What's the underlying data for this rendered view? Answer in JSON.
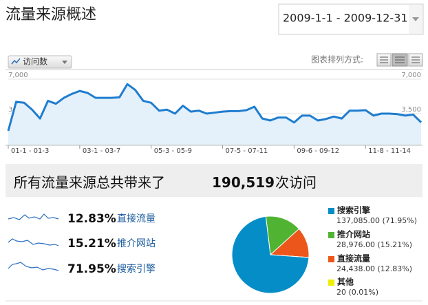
{
  "header": {
    "title": "流量来源概述",
    "date_range": "2009-1-1 - 2009-12-31"
  },
  "chart_data": [
    {
      "type": "line",
      "layout_label": "图表排列方式:",
      "categories": [
        "01-1 - 01-3",
        null,
        null,
        null,
        null,
        null,
        null,
        null,
        null,
        "03-1 - 03-7",
        null,
        null,
        null,
        null,
        null,
        null,
        null,
        null,
        "05-3 - 05-9",
        null,
        null,
        null,
        null,
        null,
        null,
        null,
        null,
        "07-5 - 07-11",
        null,
        null,
        null,
        null,
        null,
        null,
        null,
        null,
        "09-6 - 09-12",
        null,
        null,
        null,
        null,
        null,
        null,
        null,
        null,
        "11-8 - 11-14",
        null,
        null,
        null,
        null,
        null,
        null,
        null
      ],
      "series": [
        {
          "name": "访问数",
          "color": "#1f7dcf",
          "values": [
            1750,
            4700,
            4600,
            3900,
            3000,
            4800,
            4500,
            5100,
            5500,
            5800,
            5600,
            5100,
            5100,
            5100,
            5150,
            6500,
            5900,
            4800,
            4600,
            3800,
            3900,
            3500,
            4300,
            3700,
            3800,
            3500,
            3600,
            3700,
            3750,
            3750,
            3850,
            4200,
            3000,
            2800,
            3100,
            3100,
            2600,
            3300,
            3300,
            2800,
            2950,
            3200,
            3000,
            3800,
            3800,
            3850,
            3300,
            3500,
            3500,
            3450,
            3300,
            3400,
            2600
          ]
        }
      ],
      "ylim": [
        0,
        7000
      ],
      "yticks": [
        {
          "value": 3500,
          "label": "3,500"
        },
        {
          "value": 7000,
          "label": "7,000"
        }
      ],
      "grid": true
    },
    {
      "type": "pie",
      "categories": [
        "搜索引擎",
        "推介网站",
        "直接流量",
        "其他"
      ],
      "values": [
        137085,
        28976,
        24438,
        20
      ],
      "value_labels": [
        "137,085.00 (71.95%)",
        "28,976.00 (15.21%)",
        "24,438.00 (12.83%)",
        "20 (0.01%)"
      ],
      "colors": [
        "#058dc7",
        "#50b432",
        "#ed561b",
        "#edef00"
      ]
    }
  ],
  "summary": {
    "prefix": "所有流量来源总共带来了",
    "total": "190,519",
    "suffix": "次访问"
  },
  "sources": [
    {
      "percent": "12.83%",
      "label": "直接流量"
    },
    {
      "percent": "15.21%",
      "label": "推介网站"
    },
    {
      "percent": "71.95%",
      "label": "搜索引擎"
    }
  ]
}
